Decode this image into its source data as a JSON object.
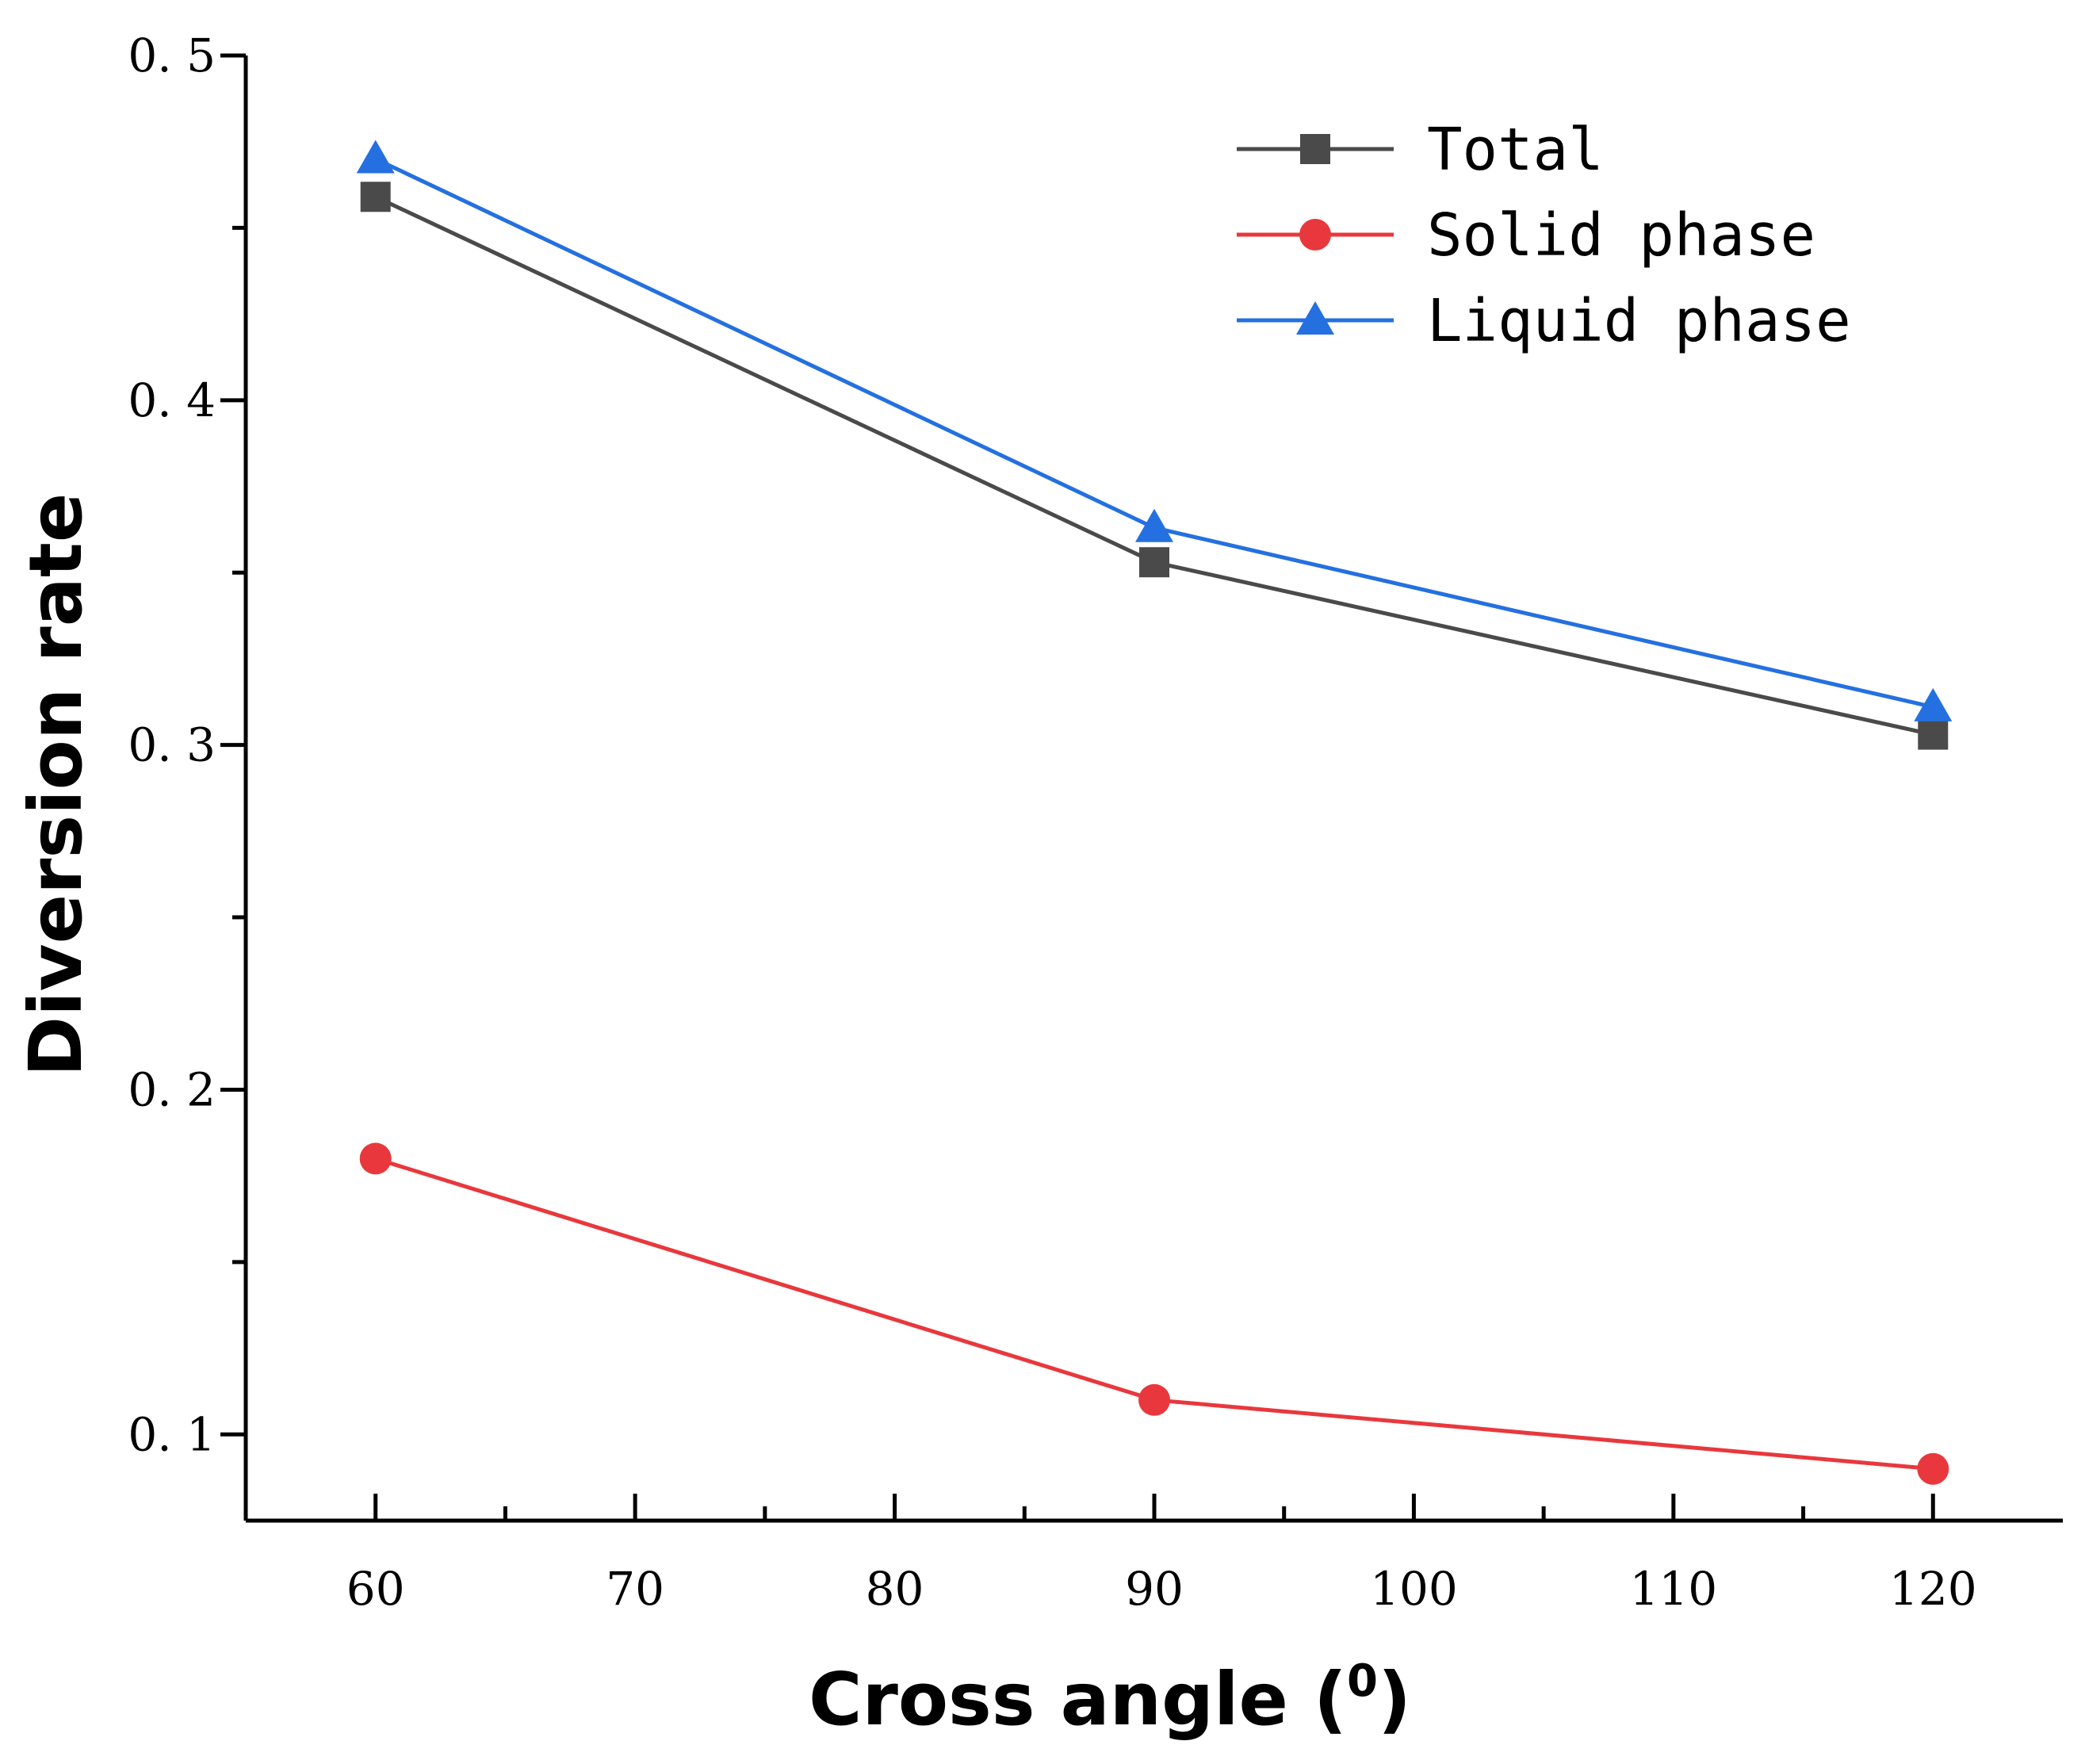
{
  "chart_data": {
    "type": "line",
    "title": "",
    "xlabel": "Cross angle (",
    "xlabel_superscript": "0",
    "xlabel_suffix": ")",
    "ylabel": "Diversion rate",
    "xlim": [
      55,
      125
    ],
    "ylim": [
      0.075,
      0.5
    ],
    "x_ticks": [
      60,
      70,
      80,
      90,
      100,
      110,
      120
    ],
    "x_tick_labels": [
      "60",
      "70",
      "80",
      "90",
      "100",
      "110",
      "120"
    ],
    "x_minor_ticks": [
      65,
      75,
      85,
      95,
      105,
      115
    ],
    "y_ticks": [
      0.1,
      0.2,
      0.3,
      0.4,
      0.5
    ],
    "y_tick_labels": [
      "0. 1",
      "0. 2",
      "0. 3",
      "0. 4",
      "0. 5"
    ],
    "y_minor_ticks": [
      0.15,
      0.25,
      0.35,
      0.45
    ],
    "x": [
      60,
      90,
      120
    ],
    "legend_position": "top-right",
    "grid": false,
    "series": [
      {
        "name": "Total",
        "marker": "square",
        "color": "#4a4a4a",
        "values": [
          0.459,
          0.353,
          0.303
        ]
      },
      {
        "name": "Solid phase",
        "marker": "circle",
        "color": "#e8383d",
        "values": [
          0.18,
          0.11,
          0.09
        ]
      },
      {
        "name": "Liquid phase",
        "marker": "triangle",
        "color": "#2470e0",
        "values": [
          0.47,
          0.363,
          0.311
        ]
      }
    ]
  }
}
